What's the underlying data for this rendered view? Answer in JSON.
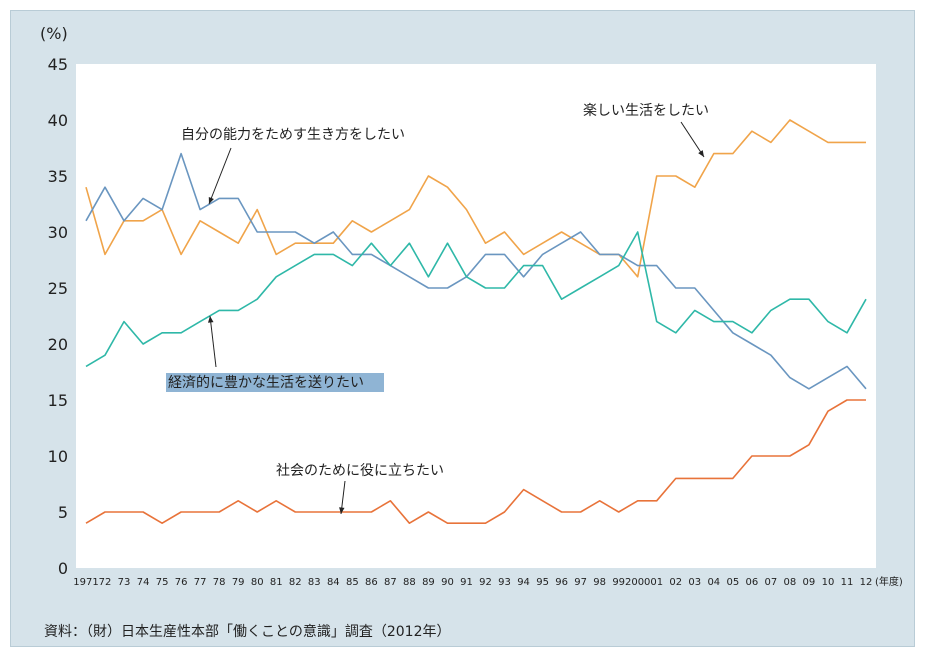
{
  "chart_data": {
    "type": "line",
    "ylabel": "(%)",
    "xunit": "(年度)",
    "ylim": [
      0,
      45
    ],
    "yticks": [
      0,
      5,
      10,
      15,
      20,
      25,
      30,
      35,
      40,
      45
    ],
    "x_tick_labels": [
      "1971",
      "72",
      "73",
      "74",
      "75",
      "76",
      "77",
      "78",
      "79",
      "80",
      "81",
      "82",
      "83",
      "84",
      "85",
      "86",
      "87",
      "88",
      "89",
      "90",
      "91",
      "92",
      "93",
      "94",
      "95",
      "96",
      "97",
      "98",
      "99",
      "2000",
      "01",
      "02",
      "03",
      "04",
      "05",
      "06",
      "07",
      "08",
      "09",
      "10",
      "11",
      "12"
    ],
    "years": [
      1971,
      1972,
      1973,
      1974,
      1975,
      1976,
      1977,
      1978,
      1979,
      1980,
      1981,
      1982,
      1983,
      1984,
      1985,
      1986,
      1987,
      1988,
      1989,
      1990,
      1991,
      1992,
      1993,
      1994,
      1995,
      1996,
      1997,
      1998,
      1999,
      2000,
      2001,
      2002,
      2003,
      2004,
      2005,
      2006,
      2007,
      2008,
      2009,
      2010,
      2011,
      2012
    ],
    "series": [
      {
        "name": "楽しい生活をしたい",
        "color": "#f0a44a",
        "values": [
          34,
          28,
          31,
          31,
          32,
          28,
          31,
          30,
          29,
          32,
          28,
          29,
          29,
          29,
          31,
          30,
          31,
          32,
          35,
          34,
          32,
          29,
          30,
          28,
          29,
          30,
          29,
          28,
          28,
          26,
          35,
          35,
          34,
          37,
          37,
          39,
          38,
          40,
          39,
          38,
          38,
          38
        ]
      },
      {
        "name": "自分の能力をためす生き方をしたい",
        "color": "#6a96c0",
        "values": [
          31,
          34,
          31,
          33,
          32,
          37,
          32,
          33,
          33,
          30,
          30,
          30,
          29,
          30,
          28,
          28,
          27,
          26,
          25,
          25,
          26,
          28,
          28,
          26,
          28,
          29,
          30,
          28,
          28,
          27,
          27,
          25,
          25,
          23,
          21,
          20,
          19,
          17,
          16,
          17,
          18,
          16
        ]
      },
      {
        "name": "経済的に豊かな生活を送りたい",
        "color": "#2fb8a8",
        "values": [
          18,
          19,
          22,
          20,
          21,
          21,
          22,
          23,
          23,
          24,
          26,
          27,
          28,
          28,
          27,
          29,
          27,
          29,
          26,
          29,
          26,
          25,
          25,
          27,
          27,
          24,
          25,
          26,
          27,
          30,
          22,
          21,
          23,
          22,
          22,
          21,
          23,
          24,
          24,
          22,
          21,
          24
        ]
      },
      {
        "name": "社会のために役に立ちたい",
        "color": "#e8733a",
        "values": [
          4,
          5,
          5,
          5,
          4,
          5,
          5,
          5,
          6,
          5,
          6,
          5,
          5,
          5,
          5,
          5,
          6,
          4,
          5,
          4,
          4,
          4,
          5,
          7,
          6,
          5,
          5,
          6,
          5,
          6,
          6,
          8,
          8,
          8,
          8,
          10,
          10,
          10,
          11,
          14,
          15,
          15
        ]
      }
    ]
  },
  "source": "資料：（財）日本生産性本部「働くことの意識」調査（2012年）"
}
